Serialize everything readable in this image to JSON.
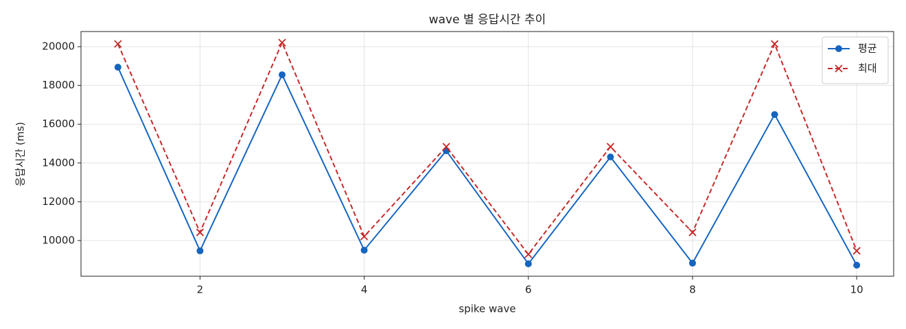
{
  "chart_data": {
    "type": "line",
    "title": "wave 별 응답시간 추이",
    "x_label": "spike wave",
    "y_label": "응답시간 (ms)",
    "x": [
      1,
      2,
      3,
      4,
      5,
      6,
      7,
      8,
      9,
      10
    ],
    "series": [
      {
        "name": "평균",
        "color": "#1565c0",
        "marker": "circle",
        "dash": false,
        "values": [
          18940,
          9470,
          18550,
          9505,
          14630,
          8800,
          14310,
          8835,
          16500,
          8730
        ]
      },
      {
        "name": "최대",
        "color": "#c62828",
        "marker": "x",
        "dash": true,
        "values": [
          20140,
          10420,
          20210,
          10210,
          14840,
          9290,
          14840,
          10420,
          20140,
          9470
        ]
      }
    ],
    "xlim": [
      0.55,
      10.45
    ],
    "ylim": [
      8160,
      20780
    ],
    "xticks": [
      2,
      4,
      6,
      8,
      10
    ],
    "yticks": [
      10000,
      12000,
      14000,
      16000,
      18000,
      20000
    ],
    "grid": true,
    "legend": "upper-right"
  }
}
